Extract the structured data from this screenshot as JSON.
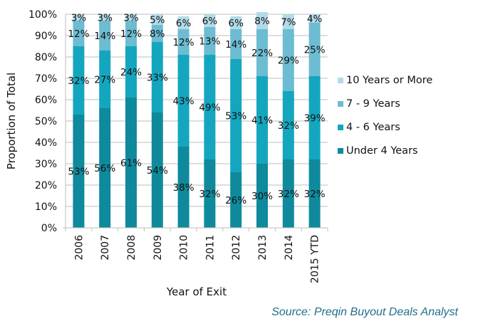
{
  "chart_data": {
    "type": "bar",
    "stacked": true,
    "title": "",
    "xlabel": "Year of Exit",
    "ylabel": "Proportion of Total",
    "ylim": [
      0,
      100
    ],
    "yticks": [
      "0%",
      "10%",
      "20%",
      "30%",
      "40%",
      "50%",
      "60%",
      "70%",
      "80%",
      "90%",
      "100%"
    ],
    "grid": true,
    "legend_position": "right",
    "categories": [
      "2006",
      "2007",
      "2008",
      "2009",
      "2010",
      "2011",
      "2012",
      "2013",
      "2014",
      "2015 YTD"
    ],
    "series": [
      {
        "name": "Under 4 Years",
        "color": "#0e8a9c",
        "values": [
          53,
          56,
          61,
          54,
          38,
          32,
          26,
          30,
          32,
          32
        ]
      },
      {
        "name": "4 - 6 Years",
        "color": "#14a6bf",
        "values": [
          32,
          27,
          24,
          33,
          43,
          49,
          53,
          41,
          32,
          39
        ]
      },
      {
        "name": "7 - 9 Years",
        "color": "#6cbcd2",
        "values": [
          12,
          14,
          12,
          8,
          12,
          13,
          14,
          22,
          29,
          25
        ]
      },
      {
        "name": "10 Years or More",
        "color": "#b3dbe7",
        "values": [
          3,
          3,
          3,
          5,
          6,
          6,
          6,
          8,
          7,
          4
        ]
      }
    ],
    "legend_order": [
      "10 Years or More",
      "7 - 9 Years",
      "4 - 6 Years",
      "Under 4 Years"
    ]
  },
  "source": "Source: Preqin Buyout Deals Analyst"
}
